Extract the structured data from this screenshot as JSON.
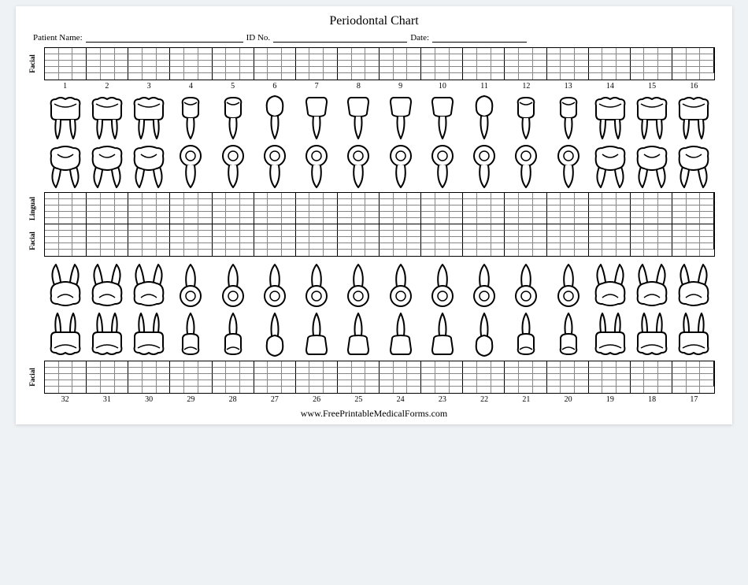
{
  "title": "Periodontal Chart",
  "header": {
    "patient_label": "Patient Name:",
    "id_label": "ID No.",
    "date_label": "Date:",
    "patient_blank_width": 200,
    "id_blank_width": 170,
    "date_blank_width": 120
  },
  "layout": {
    "tooth_count": 16,
    "cells_per_tooth": 3,
    "grid_rows_single": 5,
    "grid_rows_double": 10,
    "tooth_row_height": 62
  },
  "labels": {
    "facial": "Facial",
    "lingual": "Lingual"
  },
  "upper_numbers": [
    "1",
    "2",
    "3",
    "4",
    "5",
    "6",
    "7",
    "8",
    "9",
    "10",
    "11",
    "12",
    "13",
    "14",
    "15",
    "16"
  ],
  "lower_numbers": [
    "32",
    "31",
    "30",
    "29",
    "28",
    "27",
    "26",
    "25",
    "24",
    "23",
    "22",
    "21",
    "20",
    "19",
    "18",
    "17"
  ],
  "tooth_types_upper": [
    "molar",
    "molar",
    "molar",
    "premolar",
    "premolar",
    "canine",
    "incisor",
    "incisor",
    "incisor",
    "incisor",
    "canine",
    "premolar",
    "premolar",
    "molar",
    "molar",
    "molar"
  ],
  "tooth_types_lower": [
    "molar",
    "molar",
    "molar",
    "premolar",
    "premolar",
    "canine",
    "incisor",
    "incisor",
    "incisor",
    "incisor",
    "canine",
    "premolar",
    "premolar",
    "molar",
    "molar",
    "molar"
  ],
  "colors": {
    "stroke": "#000000",
    "fill": "#ffffff",
    "grid_minor": "#888888",
    "grid_major": "#000000",
    "page_bg": "#ffffff",
    "outer_bg": "#eef2f5"
  },
  "footer": "www.FreePrintableMedicalForms.com"
}
